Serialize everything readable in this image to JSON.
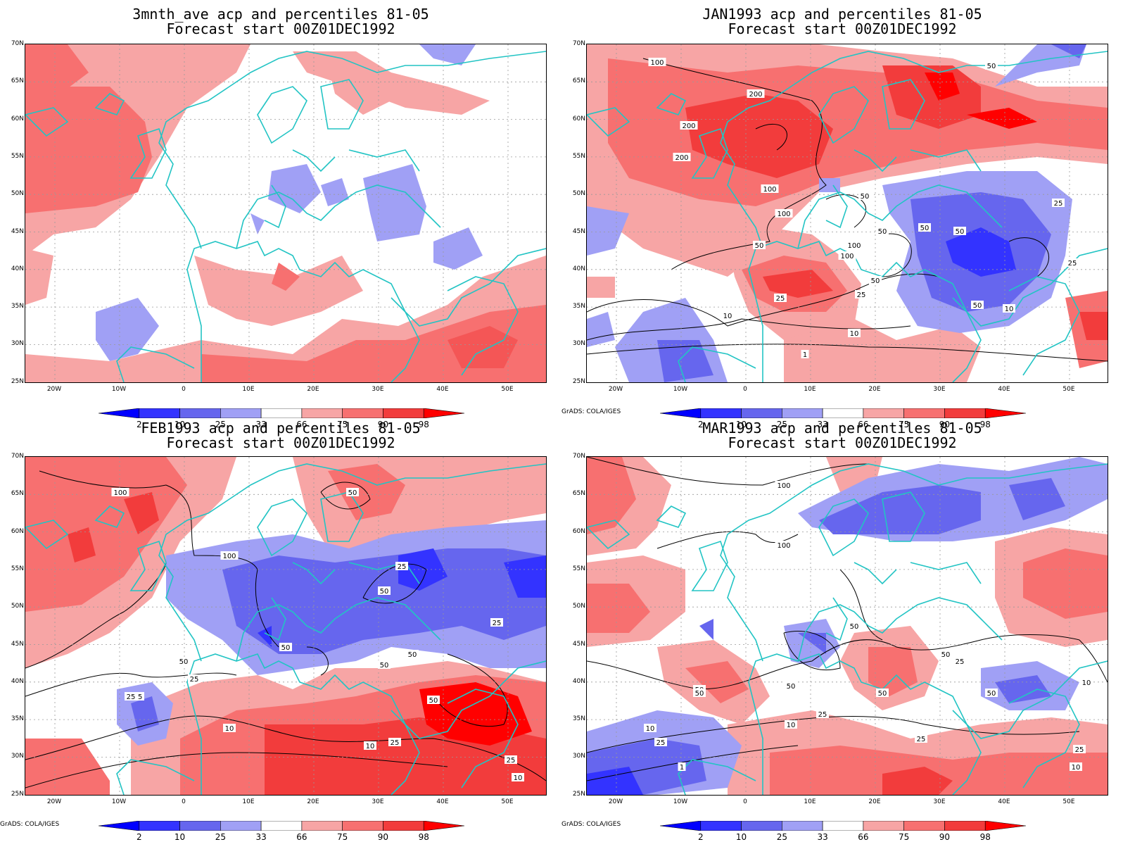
{
  "panels": [
    {
      "title_line1": "3mnth_ave acp and percentiles 81-05",
      "title_line2": "Forecast start 00Z01DEC1992",
      "credit": ""
    },
    {
      "title_line1": "JAN1993 acp and percentiles 81-05",
      "title_line2": "Forecast start 00Z01DEC1992",
      "credit": "GrADS: COLA/IGES"
    },
    {
      "title_line1": "FEB1993 acp and percentiles 81-05",
      "title_line2": "Forecast start 00Z01DEC1992",
      "credit": "GrADS: COLA/IGES"
    },
    {
      "title_line1": "MAR1993 acp and percentiles 81-05",
      "title_line2": "Forecast start 00Z01DEC1992",
      "credit": "GrADS: COLA/IGES"
    }
  ],
  "lat_labels": [
    "70N",
    "65N",
    "60N",
    "55N",
    "50N",
    "45N",
    "40N",
    "35N",
    "30N",
    "25N"
  ],
  "lon_labels": [
    "20W",
    "10W",
    "0",
    "10E",
    "20E",
    "30E",
    "40E",
    "50E"
  ],
  "colorbar": {
    "labels": [
      "2",
      "10",
      "25",
      "33",
      "66",
      "75",
      "90",
      "98"
    ],
    "colors": [
      "#0000ff",
      "#3333ff",
      "#6666ee",
      "#a0a0f5",
      "#ffffff",
      "#f7a5a5",
      "#f77070",
      "#f23c3c",
      "#ff0000"
    ]
  },
  "contour_labels": {
    "jan": [
      "100",
      "200",
      "200",
      "200",
      "100",
      "100",
      "100",
      "100",
      "50",
      "50",
      "50",
      "50",
      "50",
      "25",
      "25",
      "25",
      "50",
      "10",
      "10",
      "10",
      "1",
      "25",
      "50",
      "25",
      "50"
    ],
    "feb": [
      "100",
      "100",
      "50",
      "50",
      "50",
      "25",
      "50",
      "25",
      "50",
      "50",
      "25",
      "25",
      "10",
      "50",
      "10",
      "25",
      "25",
      "10",
      "25"
    ],
    "mar": [
      "100",
      "100",
      "50",
      "50",
      "50",
      "50",
      "50",
      "50",
      "25",
      "10",
      "10",
      "10",
      "25",
      "25",
      "1",
      "25",
      "50",
      "10",
      "25"
    ]
  }
}
